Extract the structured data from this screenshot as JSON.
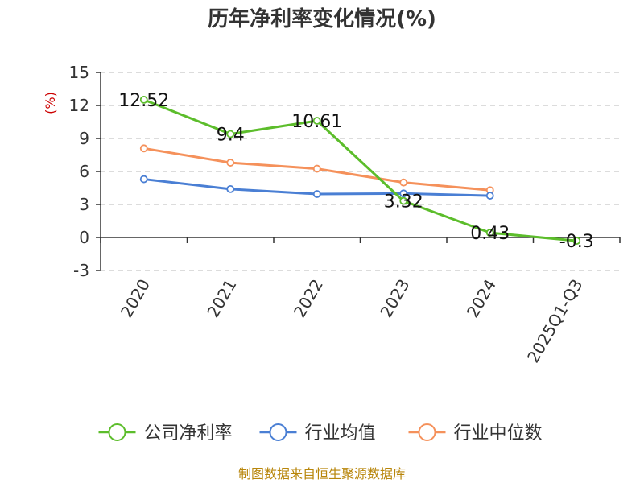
{
  "chart_data": {
    "type": "line",
    "title": "历年净利率变化情况(%)",
    "ylabel": "(%)",
    "categories": [
      "2020",
      "2021",
      "2022",
      "2023",
      "2024",
      "2025Q1-Q3"
    ],
    "ylim": [
      -3,
      15
    ],
    "yticks": [
      15,
      12,
      9,
      6,
      3,
      0,
      -3
    ],
    "grid": true,
    "legend_position": "bottom",
    "series": [
      {
        "name": "公司净利率",
        "color": "#5cbd2b",
        "values": [
          12.52,
          9.4,
          10.61,
          3.32,
          0.43,
          -0.3
        ],
        "labels": [
          "12.52",
          "9.4",
          "10.61",
          "3.32",
          "0.43",
          "-0.3"
        ]
      },
      {
        "name": "行业均值",
        "color": "#4a7fd4",
        "values": [
          5.3,
          4.4,
          3.95,
          4.0,
          3.8,
          null
        ]
      },
      {
        "name": "行业中位数",
        "color": "#f5915b",
        "values": [
          8.1,
          6.8,
          6.25,
          5.0,
          4.3,
          null
        ]
      }
    ]
  },
  "source": "制图数据来自恒生聚源数据库"
}
